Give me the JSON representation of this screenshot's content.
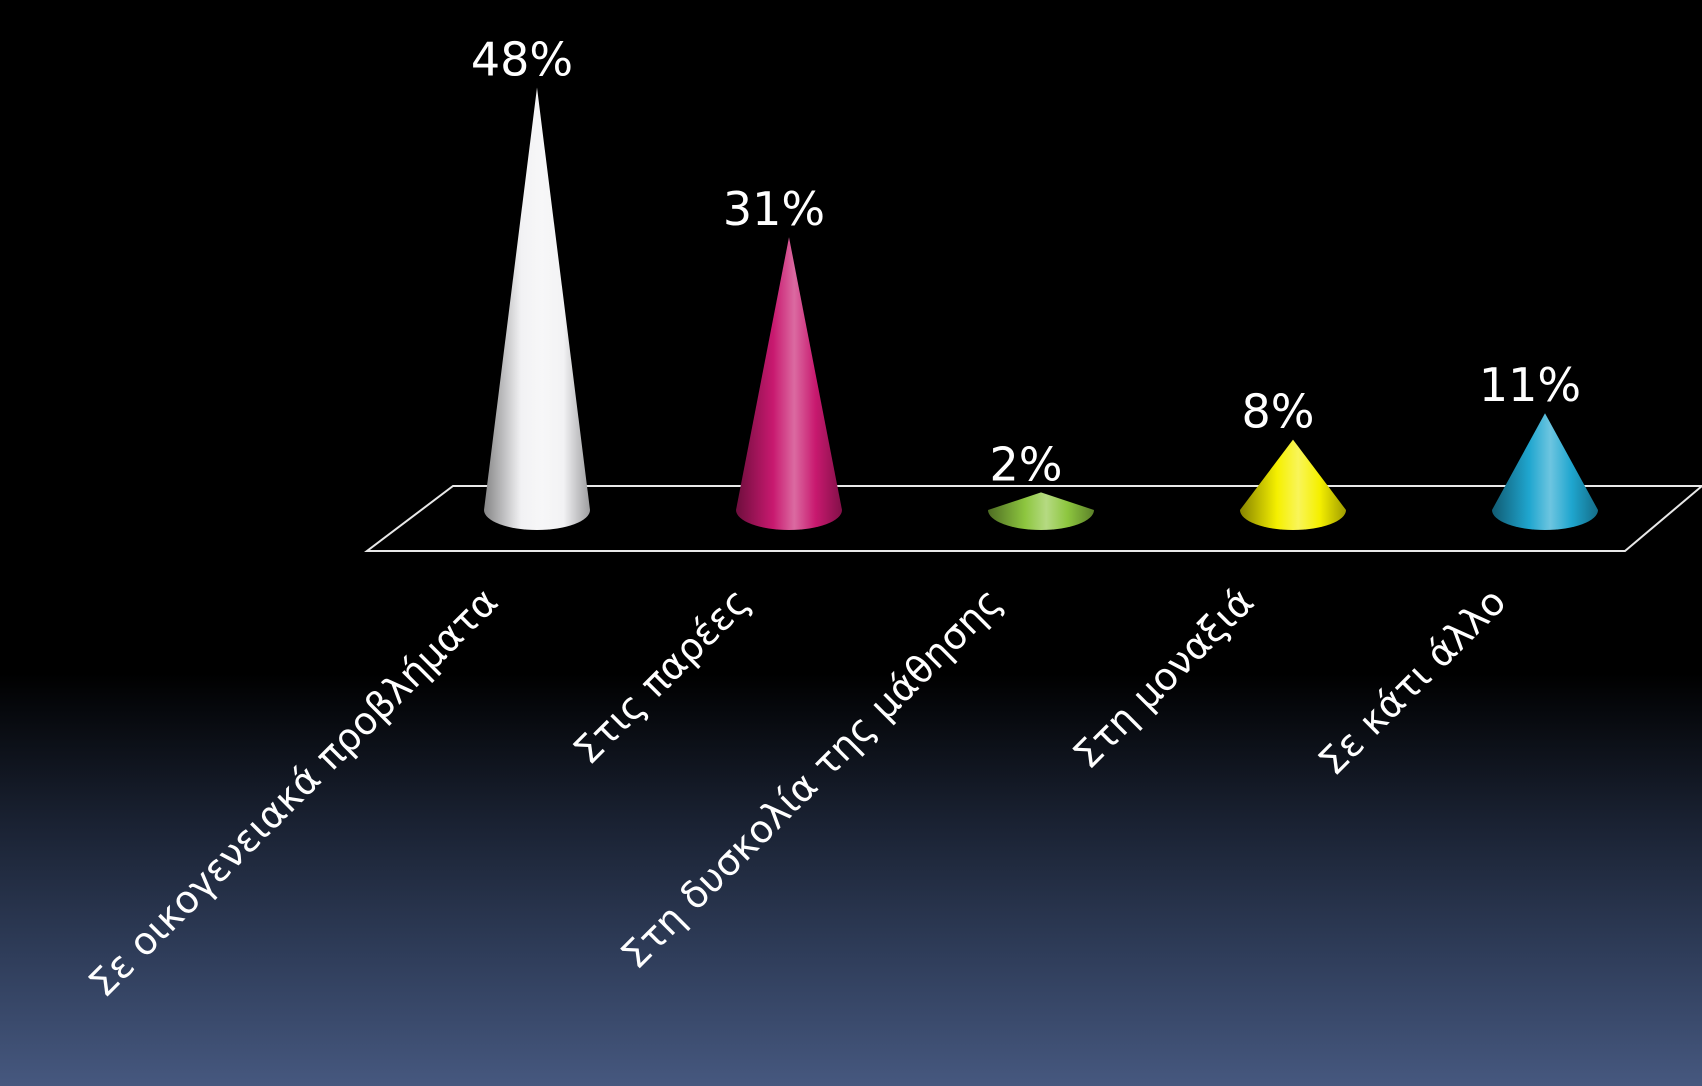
{
  "chart_data": {
    "type": "bar",
    "mark": "cone",
    "categories": [
      "Σε οικογενειακά προβλήματα",
      "Στις παρέες",
      "Στη δυσκολία της μάθησης",
      "Στη μοναξιά",
      "Σε κάτι άλλο"
    ],
    "values": [
      48,
      31,
      2,
      8,
      11
    ],
    "value_labels": [
      "48%",
      "31%",
      "2%",
      "8%",
      "11%"
    ],
    "colors": [
      "#f2f2f4",
      "#c8196f",
      "#8dc63f",
      "#f5f000",
      "#1fa6cf"
    ],
    "ylim": [
      0,
      50
    ],
    "grid": false,
    "legend": "none"
  }
}
